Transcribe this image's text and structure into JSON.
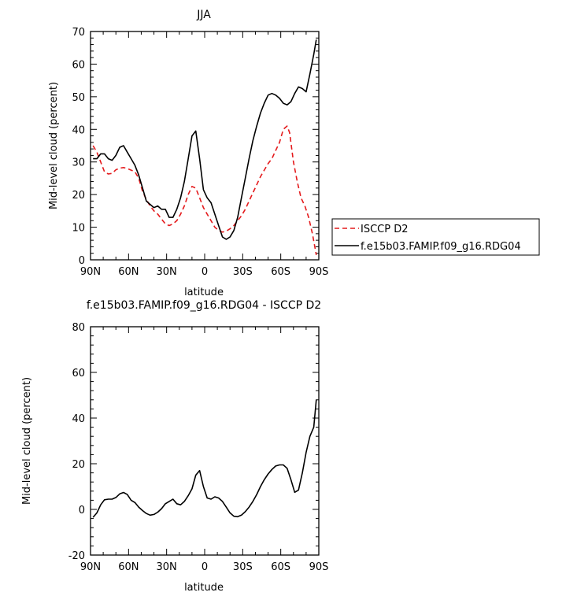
{
  "chart_data": [
    {
      "type": "line",
      "title": "JJA",
      "xlabel": "latitude",
      "ylabel": "Mid-level cloud (percent)",
      "xlim": [
        90,
        -90
      ],
      "ylim": [
        0,
        70
      ],
      "xticks": [
        90,
        60,
        30,
        0,
        -30,
        -60,
        -90
      ],
      "xtick_labels": [
        "90N",
        "60N",
        "30N",
        "0",
        "30S",
        "60S",
        "90S"
      ],
      "yticks": [
        0,
        10,
        20,
        30,
        40,
        50,
        60,
        70
      ],
      "ytick_labels": [
        "0",
        "10",
        "20",
        "30",
        "40",
        "50",
        "60",
        "70"
      ],
      "grid": false,
      "legend_position": "right",
      "series": [
        {
          "name": "ISCCP D2",
          "color": "#e41a1c",
          "dash": "dashed",
          "x": [
            88,
            85,
            82,
            79,
            76,
            73,
            70,
            67,
            64,
            61,
            58,
            55,
            52,
            49,
            46,
            43,
            40,
            37,
            34,
            31,
            28,
            25,
            22,
            19,
            16,
            13,
            10,
            7,
            4,
            1,
            -2,
            -5,
            -8,
            -11,
            -14,
            -17,
            -20,
            -23,
            -26,
            -29,
            -32,
            -35,
            -38,
            -41,
            -44,
            -47,
            -50,
            -53,
            -56,
            -59,
            -62,
            -65,
            -67,
            -70,
            -73,
            -76,
            -79,
            -82,
            -85,
            -88
          ],
          "y": [
            35,
            33,
            30,
            27,
            26.3,
            26.5,
            27.6,
            28.1,
            28.3,
            28,
            27.5,
            27,
            25,
            21,
            18.5,
            16.5,
            15,
            14,
            12.5,
            11,
            10.5,
            11,
            12,
            14,
            16.5,
            20,
            22.5,
            22,
            19,
            16,
            14,
            12,
            10,
            9,
            8.5,
            8.8,
            9.5,
            10.5,
            12,
            13.5,
            15.5,
            18,
            20.5,
            23,
            25.5,
            27.5,
            29.5,
            31,
            33.5,
            36,
            40,
            41,
            39,
            30,
            24,
            19,
            16.5,
            13,
            8,
            1.5
          ]
        },
        {
          "name": "f.e15b03.FAMIP.f09_g16.RDG04",
          "color": "#000000",
          "dash": "solid",
          "x": [
            88,
            85,
            82,
            79,
            76,
            73,
            70,
            67,
            64,
            61,
            58,
            55,
            52,
            49,
            46,
            43,
            40,
            37,
            34,
            31,
            28,
            25,
            22,
            19,
            16,
            13,
            10,
            7,
            4,
            1,
            -2,
            -5,
            -8,
            -11,
            -14,
            -17,
            -20,
            -23,
            -26,
            -29,
            -32,
            -35,
            -38,
            -41,
            -44,
            -47,
            -50,
            -53,
            -56,
            -59,
            -62,
            -65,
            -68,
            -71,
            -74,
            -77,
            -80,
            -83,
            -86,
            -88
          ],
          "y": [
            31,
            31,
            32.5,
            32.5,
            31,
            30.5,
            32,
            34.5,
            35,
            33,
            31,
            29,
            26,
            22,
            18,
            17,
            16,
            16.5,
            15.5,
            15.5,
            13,
            13,
            15.5,
            19,
            24,
            31,
            38,
            39.5,
            31,
            21.5,
            19,
            17.5,
            14,
            10.5,
            7,
            6.3,
            7,
            9,
            13,
            19,
            25,
            31,
            36.5,
            41,
            45,
            48,
            50.5,
            51,
            50.5,
            49.5,
            48,
            47.5,
            48.5,
            51,
            53,
            52.5,
            51.5,
            57,
            63,
            67.5
          ]
        }
      ]
    },
    {
      "type": "line",
      "title": "f.e15b03.FAMIP.f09_g16.RDG04 - ISCCP D2",
      "xlabel": "latitude",
      "ylabel": "Mid-level cloud (percent)",
      "xlim": [
        90,
        -90
      ],
      "ylim": [
        -20,
        80
      ],
      "xticks": [
        90,
        60,
        30,
        0,
        -30,
        -60,
        -90
      ],
      "xtick_labels": [
        "90N",
        "60N",
        "30N",
        "0",
        "30S",
        "60S",
        "90S"
      ],
      "yticks": [
        -20,
        0,
        20,
        40,
        60,
        80
      ],
      "ytick_labels": [
        "-20",
        "0",
        "20",
        "40",
        "60",
        "80"
      ],
      "grid": false,
      "series": [
        {
          "color": "#000000",
          "dash": "solid",
          "x": [
            88,
            85,
            82,
            79,
            76,
            73,
            70,
            67,
            64,
            61,
            58,
            55,
            52,
            49,
            46,
            43,
            40,
            37,
            34,
            31,
            28,
            25,
            22,
            19,
            16,
            13,
            10,
            7,
            4,
            1,
            -2,
            -5,
            -8,
            -11,
            -14,
            -17,
            -20,
            -23,
            -26,
            -29,
            -32,
            -35,
            -38,
            -41,
            -44,
            -47,
            -50,
            -53,
            -56,
            -59,
            -62,
            -65,
            -68,
            -71,
            -74,
            -77,
            -80,
            -83,
            -86,
            -88
          ],
          "y": [
            -3.5,
            -1.5,
            2,
            4.2,
            4.5,
            4.5,
            5.2,
            6.8,
            7.4,
            6.5,
            4,
            3,
            1,
            -0.5,
            -1.8,
            -2.5,
            -2.2,
            -1.2,
            0.3,
            2.5,
            3.5,
            4.5,
            2.5,
            2,
            3.5,
            6,
            9,
            15,
            17,
            10,
            5,
            4.5,
            5.5,
            5,
            3.5,
            1,
            -1.5,
            -3,
            -3.2,
            -2.5,
            -1,
            1,
            3.5,
            6.5,
            10,
            13,
            15.5,
            17.5,
            19,
            19.5,
            19.5,
            18,
            13,
            7.5,
            8.5,
            16,
            25,
            32,
            36,
            48
          ]
        }
      ]
    }
  ]
}
